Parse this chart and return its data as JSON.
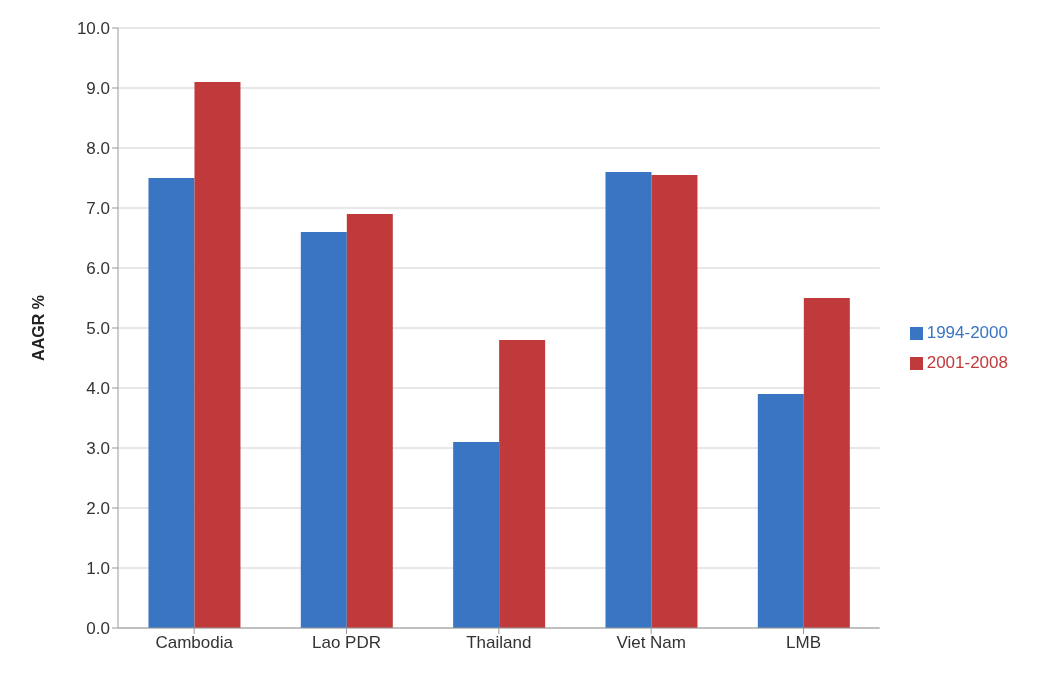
{
  "chart_data": {
    "type": "bar",
    "ylabel": "AAGR %",
    "categories": [
      "Cambodia",
      "Lao PDR",
      "Thailand",
      "Viet Nam",
      "LMB"
    ],
    "series": [
      {
        "name": "1994-2000",
        "color": "#3a75c4",
        "values": [
          7.5,
          6.6,
          3.1,
          7.6,
          3.9
        ]
      },
      {
        "name": "2001-2008",
        "color": "#c0393b",
        "values": [
          9.1,
          6.9,
          4.8,
          7.55,
          5.5
        ]
      }
    ],
    "ylim": [
      0,
      10
    ],
    "yticks": [
      {
        "value": 0,
        "label": "0.0"
      },
      {
        "value": 1,
        "label": "1.0"
      },
      {
        "value": 2,
        "label": "2.0"
      },
      {
        "value": 3,
        "label": "3.0"
      },
      {
        "value": 4,
        "label": "4.0"
      },
      {
        "value": 5,
        "label": "5.0"
      },
      {
        "value": 6,
        "label": "6.0"
      },
      {
        "value": 7,
        "label": "7.0"
      },
      {
        "value": 8,
        "label": "8.0"
      },
      {
        "value": 9,
        "label": "9.0"
      },
      {
        "value": 10,
        "label": "10.0"
      }
    ],
    "grid": "y",
    "legend": "right"
  }
}
